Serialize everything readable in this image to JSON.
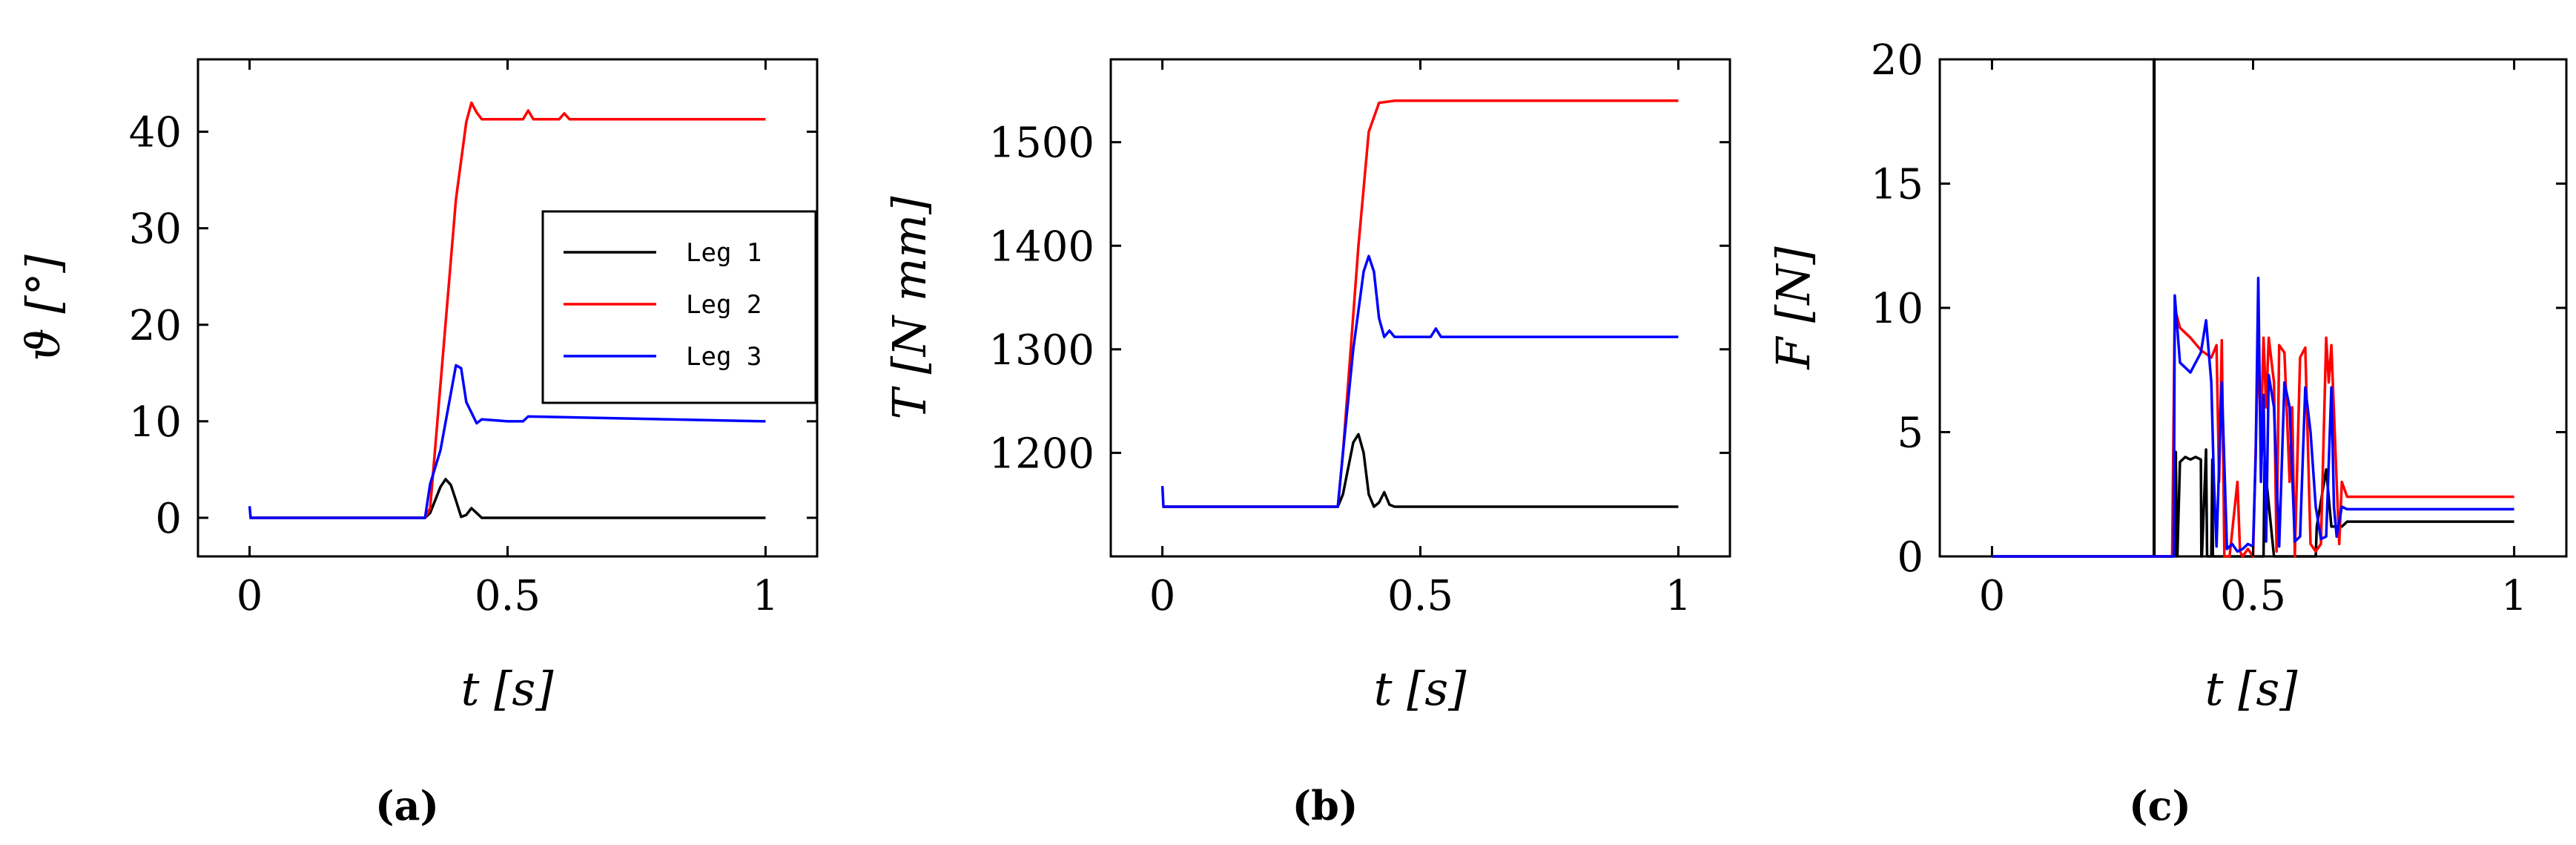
{
  "chart_data": [
    {
      "id": "a",
      "type": "line",
      "caption": "(a)",
      "xlabel": "t [s]",
      "ylabel": "ϑ [°]",
      "xlim": [
        -0.1,
        1.1
      ],
      "ylim": [
        -4,
        47.5
      ],
      "xticks": [
        0,
        0.5,
        1
      ],
      "xtick_labels": [
        "0",
        "0.5",
        "1"
      ],
      "yticks": [
        0,
        10,
        20,
        30,
        40
      ],
      "ytick_labels": [
        "0",
        "10",
        "20",
        "30",
        "40"
      ],
      "legend": {
        "position": "right",
        "entries": [
          "Leg 1",
          "Leg 2",
          "Leg 3"
        ]
      },
      "series": [
        {
          "name": "Leg 1",
          "color": "#000000",
          "x": [
            0,
            0.34,
            0.35,
            0.37,
            0.38,
            0.39,
            0.4,
            0.41,
            0.42,
            0.43,
            0.44,
            0.45,
            0.47,
            1
          ],
          "y": [
            0,
            0,
            0.5,
            3.2,
            4,
            3.4,
            1.8,
            0.1,
            0.3,
            1,
            0.5,
            0,
            0,
            0
          ]
        },
        {
          "name": "Leg 2",
          "color": "#ff0000",
          "x": [
            0,
            0.34,
            0.35,
            0.4,
            0.42,
            0.43,
            0.44,
            0.45,
            0.5,
            0.53,
            0.54,
            0.55,
            0.6,
            0.61,
            0.62,
            1
          ],
          "y": [
            0,
            0,
            1,
            33,
            41,
            43,
            42,
            41.3,
            41.3,
            41.3,
            42.2,
            41.3,
            41.3,
            41.9,
            41.3,
            41.3
          ]
        },
        {
          "name": "Leg 3",
          "color": "#0000ff",
          "x": [
            0,
            0.002,
            0.004,
            0.34,
            0.35,
            0.37,
            0.4,
            0.41,
            0.42,
            0.44,
            0.45,
            0.5,
            0.53,
            0.54,
            1
          ],
          "y": [
            1.2,
            0,
            0,
            0,
            3.5,
            7,
            15.8,
            15.5,
            12,
            9.8,
            10.2,
            10,
            10,
            10.5,
            10
          ]
        }
      ]
    },
    {
      "id": "b",
      "type": "line",
      "caption": "(b)",
      "xlabel": "t [s]",
      "ylabel": "T [N mm]",
      "xlim": [
        -0.1,
        1.1
      ],
      "ylim": [
        1100,
        1580
      ],
      "xticks": [
        0,
        0.5,
        1
      ],
      "xtick_labels": [
        "0",
        "0.5",
        "1"
      ],
      "yticks": [
        1200,
        1300,
        1400,
        1500
      ],
      "ytick_labels": [
        "1200",
        "1300",
        "1400",
        "1500"
      ],
      "series": [
        {
          "name": "Leg 1",
          "color": "#000000",
          "x": [
            0,
            0.34,
            0.35,
            0.37,
            0.38,
            0.39,
            0.4,
            0.41,
            0.42,
            0.43,
            0.44,
            0.45,
            1
          ],
          "y": [
            1148,
            1148,
            1160,
            1210,
            1218,
            1200,
            1160,
            1148,
            1152,
            1162,
            1150,
            1148,
            1148
          ]
        },
        {
          "name": "Leg 2",
          "color": "#ff0000",
          "x": [
            0,
            0.34,
            0.35,
            0.38,
            0.4,
            0.42,
            0.45,
            0.5,
            1
          ],
          "y": [
            1148,
            1148,
            1200,
            1400,
            1510,
            1538,
            1540,
            1540,
            1540
          ]
        },
        {
          "name": "Leg 3",
          "color": "#0000ff",
          "x": [
            0,
            0.002,
            0.004,
            0.34,
            0.35,
            0.37,
            0.39,
            0.4,
            0.41,
            0.42,
            0.43,
            0.44,
            0.45,
            0.52,
            0.53,
            0.54,
            1
          ],
          "y": [
            1168,
            1148,
            1148,
            1148,
            1200,
            1300,
            1375,
            1390,
            1375,
            1330,
            1312,
            1318,
            1312,
            1312,
            1320,
            1312,
            1312
          ]
        }
      ]
    },
    {
      "id": "c",
      "type": "line",
      "caption": "(c)",
      "xlabel": "t [s]",
      "ylabel": "F [N]",
      "xlim": [
        -0.1,
        1.1
      ],
      "ylim": [
        0,
        20
      ],
      "xticks": [
        0,
        0.5,
        1
      ],
      "xtick_labels": [
        "0",
        "0.5",
        "1"
      ],
      "yticks": [
        0,
        5,
        10,
        15,
        20
      ],
      "ytick_labels": [
        "0",
        "5",
        "10",
        "15",
        "20"
      ],
      "series": [
        {
          "name": "Leg 1",
          "color": "#000000",
          "x": [
            0,
            0.31,
            0.31,
            0.311,
            0.311,
            0.35,
            0.352,
            0.354,
            0.355,
            0.36,
            0.37,
            0.38,
            0.39,
            0.4,
            0.401,
            0.402,
            0.41,
            0.412,
            0.42,
            0.422,
            0.423,
            0.43,
            0.44,
            0.441,
            0.45,
            0.452,
            0.5,
            0.52,
            0.522,
            0.54,
            0.542,
            0.56,
            0.562,
            0.6,
            0.62,
            0.622,
            0.64,
            0.65,
            0.67,
            0.68,
            1
          ],
          "y": [
            0,
            0,
            20,
            20,
            0,
            0,
            4.2,
            0,
            0,
            3.8,
            4,
            3.9,
            4,
            3.9,
            0,
            0,
            4.3,
            0,
            0,
            3.9,
            0,
            0,
            0,
            0,
            0,
            0,
            0,
            0,
            3.8,
            0,
            0,
            0,
            0,
            0,
            0,
            1.2,
            3.5,
            1.2,
            1.2,
            1.4,
            1.4
          ]
        },
        {
          "name": "Leg 2",
          "color": "#ff0000",
          "x": [
            0,
            0.345,
            0.35,
            0.36,
            0.38,
            0.4,
            0.42,
            0.43,
            0.435,
            0.44,
            0.445,
            0.45,
            0.455,
            0.47,
            0.475,
            0.48,
            0.49,
            0.5,
            0.51,
            0.515,
            0.52,
            0.525,
            0.53,
            0.54,
            0.545,
            0.55,
            0.56,
            0.57,
            0.575,
            0.58,
            0.59,
            0.6,
            0.61,
            0.62,
            0.63,
            0.64,
            0.645,
            0.65,
            0.66,
            0.665,
            0.67,
            0.68,
            1
          ],
          "y": [
            0,
            0,
            10,
            9.2,
            8.8,
            8.3,
            8,
            8.5,
            3,
            8.7,
            0,
            0,
            0,
            3,
            0.2,
            0,
            0.3,
            0,
            8.5,
            5,
            8.8,
            6,
            8.8,
            7,
            0.2,
            8.5,
            8.2,
            3,
            6,
            0,
            8,
            8.4,
            0.5,
            0.2,
            0.5,
            8.8,
            7,
            8.5,
            3,
            0.5,
            3,
            2.4,
            2.4
          ]
        },
        {
          "name": "Leg 3",
          "color": "#0000ff",
          "x": [
            0,
            0.348,
            0.35,
            0.36,
            0.38,
            0.4,
            0.41,
            0.42,
            0.425,
            0.43,
            0.44,
            0.45,
            0.455,
            0.46,
            0.47,
            0.48,
            0.49,
            0.5,
            0.505,
            0.51,
            0.515,
            0.52,
            0.525,
            0.53,
            0.54,
            0.55,
            0.56,
            0.57,
            0.58,
            0.59,
            0.6,
            0.61,
            0.62,
            0.63,
            0.64,
            0.65,
            0.655,
            0.66,
            0.67,
            0.68,
            1
          ],
          "y": [
            0,
            0,
            10.5,
            7.8,
            7.4,
            8.2,
            9.5,
            7,
            3,
            0.4,
            7,
            0.3,
            0.4,
            0.5,
            0.2,
            0.3,
            0.5,
            0.4,
            4,
            11.2,
            3,
            6.5,
            0.6,
            7.3,
            6,
            0.4,
            7,
            6,
            0.6,
            0.8,
            6.8,
            5,
            2,
            0.7,
            0.8,
            6.8,
            2,
            0.8,
            2,
            1.9,
            1.9
          ]
        }
      ]
    }
  ]
}
